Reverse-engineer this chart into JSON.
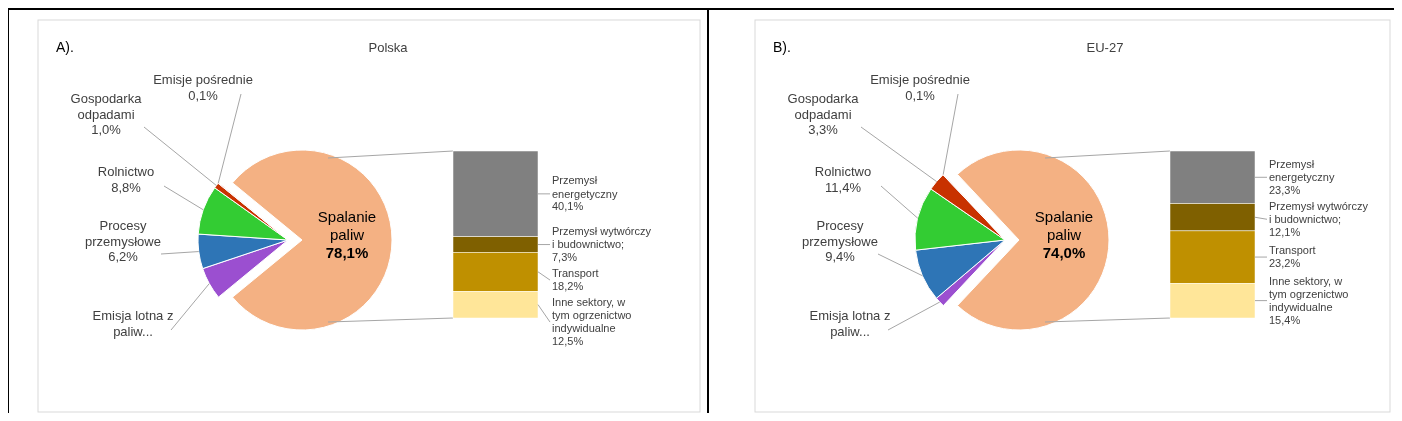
{
  "chart_data": [
    {
      "type": "pie",
      "title": "Polska",
      "annotations": [
        "A)."
      ],
      "categories": [
        "Emisja lotna z paliw...",
        "Procesy przemysłowe",
        "Rolnictwo",
        "Gospodarka odpadami",
        "Emisje pośrednie",
        "Spalanie paliw"
      ],
      "values": [
        5.8,
        6.2,
        8.8,
        1.0,
        0.1,
        78.1
      ],
      "colors": [
        "#9b4fd0",
        "#2e75b6",
        "#33cc33",
        "#c83200",
        "#c00000",
        "#f4b183"
      ],
      "value_labels": [
        null,
        "6,2%",
        "8,8%",
        "1,0%",
        "0,1%",
        "78,1%"
      ]
    },
    {
      "type": "bar",
      "stacked": true,
      "categories": [
        null
      ],
      "series": [
        {
          "name": "Inne sektory, w tym ogrzenictwo indywidualne",
          "color": "#ffe699",
          "values": [
            12.5
          ],
          "value_labels": [
            "12,5%"
          ]
        },
        {
          "name": "Transport",
          "color": "#bf9000",
          "values": [
            18.2
          ],
          "value_labels": [
            "18,2%"
          ]
        },
        {
          "name": "Przemysł wytwórczy i budownictwo;",
          "color": "#7f6000",
          "values": [
            7.3
          ],
          "value_labels": [
            "7,3%"
          ]
        },
        {
          "name": "Przemysł energetyczny",
          "color": "#808080",
          "values": [
            40.1
          ],
          "value_labels": [
            "40,1%"
          ]
        }
      ]
    },
    {
      "type": "pie",
      "title": "EU-27",
      "annotations": [
        "B)."
      ],
      "categories": [
        "Emisja lotna z paliw...",
        "Procesy przemysłowe",
        "Rolnictwo",
        "Gospodarka odpadami",
        "Emisje pośrednie",
        "Spalanie paliw"
      ],
      "values": [
        1.8,
        9.4,
        11.4,
        3.3,
        0.1,
        74.0
      ],
      "colors": [
        "#9b4fd0",
        "#2e75b6",
        "#33cc33",
        "#c83200",
        "#c00000",
        "#f4b183"
      ],
      "value_labels": [
        null,
        "9,4%",
        "11,4%",
        "3,3%",
        "0,1%",
        "74,0%"
      ]
    },
    {
      "type": "bar",
      "stacked": true,
      "categories": [
        null
      ],
      "series": [
        {
          "name": "Inne sektory, w tym ogrzenictwo indywidualne",
          "color": "#ffe699",
          "values": [
            15.4
          ],
          "value_labels": [
            "15,4%"
          ]
        },
        {
          "name": "Transport",
          "color": "#bf9000",
          "values": [
            23.2
          ],
          "value_labels": [
            "23,2%"
          ]
        },
        {
          "name": "Przemysł wytwórczy i budownictwo;",
          "color": "#7f6000",
          "values": [
            12.1
          ],
          "value_labels": [
            "12,1%"
          ]
        },
        {
          "name": "Przemysł energetyczny",
          "color": "#808080",
          "values": [
            23.3
          ],
          "value_labels": [
            "23,3%"
          ]
        }
      ]
    }
  ]
}
